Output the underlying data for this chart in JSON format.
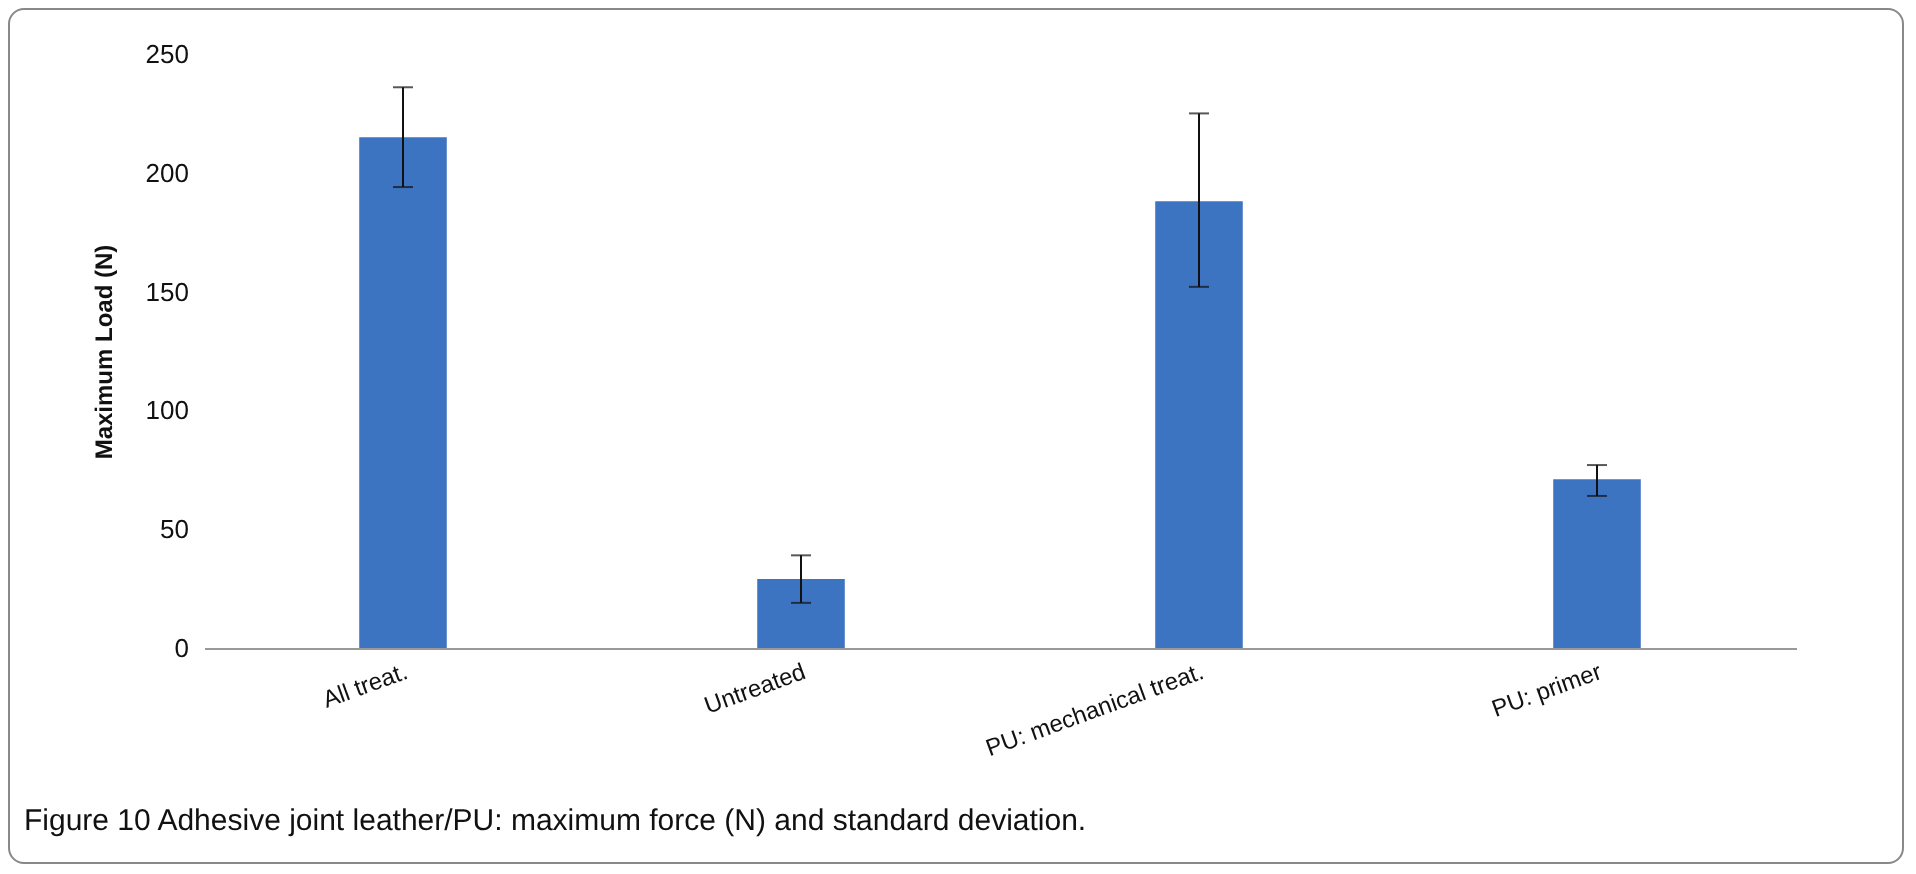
{
  "chart_data": {
    "type": "bar",
    "categories": [
      "All treat.",
      "Untreated",
      "PU: mechanical treat.",
      "PU: primer"
    ],
    "values": [
      215,
      29,
      188,
      71
    ],
    "errors": [
      [
        194,
        236
      ],
      [
        19,
        39
      ],
      [
        152,
        225
      ],
      [
        64,
        77
      ]
    ],
    "color": "#3d74c2",
    "ylabel": "Maximum Load (N)",
    "ylim": [
      0,
      250
    ],
    "yticks": [
      0,
      50,
      100,
      150,
      200,
      250
    ],
    "grid": false,
    "annotations": [
      "Figure 10 Adhesive joint leather/PU: maximum force (N) and standard deviation."
    ]
  }
}
